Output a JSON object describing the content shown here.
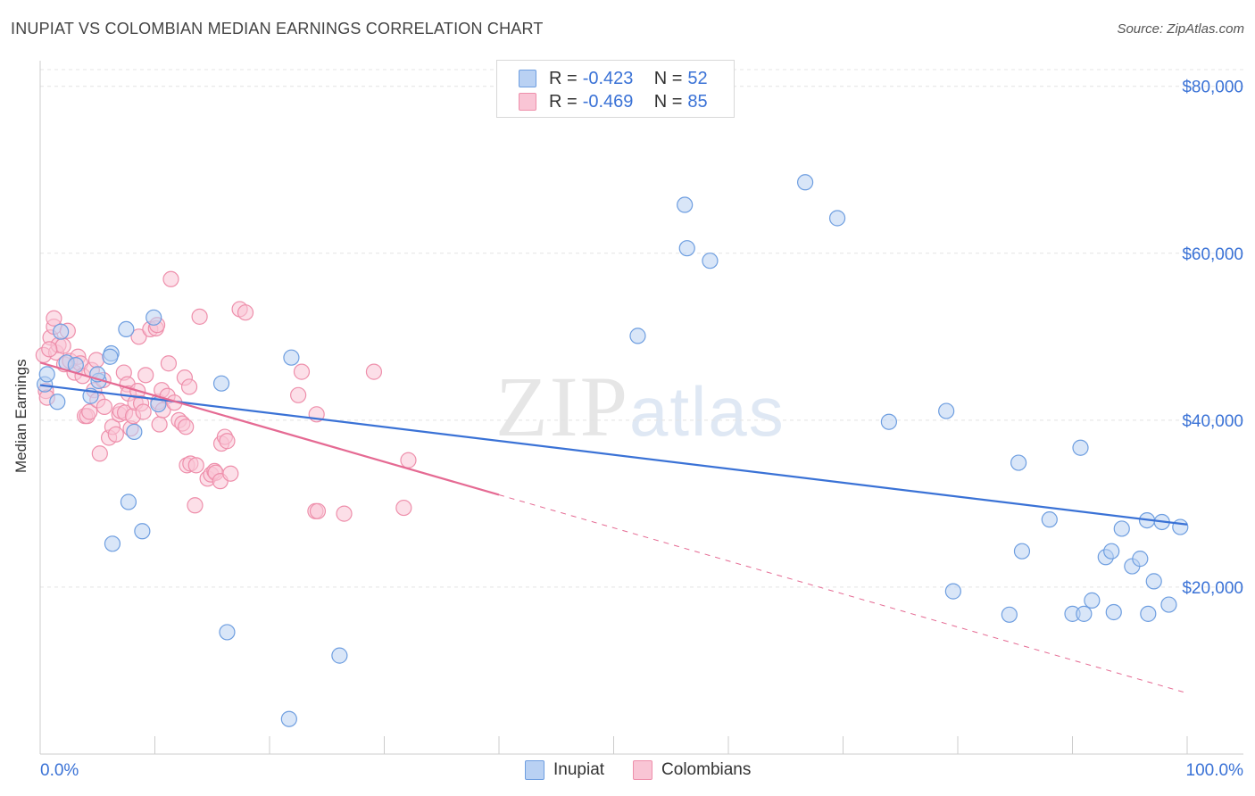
{
  "title": "INUPIAT VS COLOMBIAN MEDIAN EARNINGS CORRELATION CHART",
  "source": "Source: ZipAtlas.com",
  "watermark": {
    "zip": "ZIP",
    "atlas": "atlas"
  },
  "legend_top": [
    {
      "name": "Inupiat",
      "r_label": "R =",
      "r_value": "-0.423",
      "n_label": "N =",
      "n_value": "52",
      "fill": "#b9d1f3",
      "stroke": "#6e9ee0"
    },
    {
      "name": "Colombians",
      "r_label": "R =",
      "r_value": "-0.469",
      "n_label": "N =",
      "n_value": "85",
      "fill": "#f9c5d5",
      "stroke": "#ee8fab"
    }
  ],
  "legend_bottom": [
    "Inupiat",
    "Colombians"
  ],
  "colors": {
    "blue": "#3a72d6",
    "pink": "#e56a93",
    "grid": "#e4e4e4",
    "axis_label": "#3a72d6"
  },
  "chart_data": {
    "type": "scatter",
    "title": "INUPIAT VS COLOMBIAN MEDIAN EARNINGS CORRELATION CHART",
    "xlabel": "",
    "ylabel": "Median Earnings",
    "xlim": [
      0,
      100
    ],
    "ylim": [
      0,
      82000
    ],
    "x_tick_labels": [
      "0.0%",
      "100.0%"
    ],
    "y_ticks": [
      20000,
      40000,
      60000,
      80000
    ],
    "y_tick_labels": [
      "$20,000",
      "$40,000",
      "$60,000",
      "$80,000"
    ],
    "grid": true,
    "series": [
      {
        "name": "Inupiat",
        "color": "#6e9ee0",
        "fill": "#b9d1f3",
        "trend": {
          "x0": 0,
          "y0": 44200,
          "x1": 100,
          "y1": 27500,
          "dashed_from": null
        },
        "points": [
          [
            0.4,
            44300
          ],
          [
            0.6,
            45500
          ],
          [
            1.5,
            42200
          ],
          [
            1.8,
            50600
          ],
          [
            2.3,
            46900
          ],
          [
            3.1,
            46600
          ],
          [
            4.4,
            42900
          ],
          [
            5.1,
            44700
          ],
          [
            5.0,
            45500
          ],
          [
            6.2,
            48000
          ],
          [
            6.1,
            47600
          ],
          [
            6.3,
            25200
          ],
          [
            7.5,
            50900
          ],
          [
            7.7,
            30200
          ],
          [
            8.2,
            38600
          ],
          [
            8.9,
            26700
          ],
          [
            9.9,
            52300
          ],
          [
            10.3,
            41900
          ],
          [
            15.8,
            44400
          ],
          [
            16.3,
            14600
          ],
          [
            21.7,
            4200
          ],
          [
            21.9,
            47500
          ],
          [
            26.1,
            11800
          ],
          [
            52.1,
            50100
          ],
          [
            56.2,
            65800
          ],
          [
            56.4,
            60600
          ],
          [
            58.4,
            59100
          ],
          [
            66.7,
            68500
          ],
          [
            69.5,
            64200
          ],
          [
            74.0,
            39800
          ],
          [
            79.0,
            41100
          ],
          [
            79.6,
            19500
          ],
          [
            84.5,
            16700
          ],
          [
            85.3,
            34900
          ],
          [
            85.6,
            24300
          ],
          [
            88.0,
            28100
          ],
          [
            90.0,
            16800
          ],
          [
            90.7,
            36700
          ],
          [
            91.0,
            16800
          ],
          [
            91.7,
            18400
          ],
          [
            92.9,
            23600
          ],
          [
            93.4,
            24300
          ],
          [
            93.6,
            17000
          ],
          [
            94.3,
            27000
          ],
          [
            95.2,
            22500
          ],
          [
            95.9,
            23400
          ],
          [
            96.5,
            28000
          ],
          [
            96.6,
            16800
          ],
          [
            97.1,
            20700
          ],
          [
            98.4,
            17900
          ],
          [
            99.4,
            27200
          ],
          [
            97.8,
            27800
          ]
        ]
      },
      {
        "name": "Colombians",
        "color": "#ee8fab",
        "fill": "#f9c5d5",
        "trend": {
          "x0": 0,
          "y0": 46900,
          "x1": 100,
          "y1": 7300,
          "dashed_from": 40
        },
        "points": [
          [
            0.3,
            47800
          ],
          [
            0.5,
            43500
          ],
          [
            0.6,
            42700
          ],
          [
            0.9,
            49900
          ],
          [
            1.2,
            51200
          ],
          [
            1.2,
            52200
          ],
          [
            1.4,
            48100
          ],
          [
            1.6,
            49000
          ],
          [
            2.0,
            48900
          ],
          [
            2.1,
            46700
          ],
          [
            2.4,
            50700
          ],
          [
            2.6,
            47100
          ],
          [
            3.0,
            45700
          ],
          [
            3.3,
            47600
          ],
          [
            3.5,
            46800
          ],
          [
            3.7,
            45300
          ],
          [
            3.9,
            40500
          ],
          [
            4.1,
            40500
          ],
          [
            4.3,
            41000
          ],
          [
            4.5,
            46000
          ],
          [
            4.7,
            43600
          ],
          [
            5.0,
            42400
          ],
          [
            5.2,
            36000
          ],
          [
            5.5,
            44800
          ],
          [
            5.6,
            41600
          ],
          [
            6.0,
            37900
          ],
          [
            6.3,
            39200
          ],
          [
            6.6,
            38300
          ],
          [
            6.9,
            40700
          ],
          [
            7.0,
            41100
          ],
          [
            7.3,
            45700
          ],
          [
            7.4,
            40900
          ],
          [
            7.6,
            44300
          ],
          [
            7.7,
            43200
          ],
          [
            7.9,
            39000
          ],
          [
            8.1,
            40500
          ],
          [
            8.3,
            42100
          ],
          [
            8.5,
            43500
          ],
          [
            8.6,
            50000
          ],
          [
            8.8,
            42000
          ],
          [
            9.0,
            41000
          ],
          [
            9.2,
            45400
          ],
          [
            9.6,
            50900
          ],
          [
            10.1,
            51000
          ],
          [
            10.2,
            51400
          ],
          [
            10.3,
            42200
          ],
          [
            10.4,
            39500
          ],
          [
            10.6,
            43600
          ],
          [
            10.7,
            41200
          ],
          [
            11.1,
            42900
          ],
          [
            11.2,
            46800
          ],
          [
            11.4,
            56900
          ],
          [
            11.7,
            42100
          ],
          [
            12.1,
            40000
          ],
          [
            12.4,
            39600
          ],
          [
            12.6,
            45100
          ],
          [
            12.7,
            39200
          ],
          [
            12.8,
            34600
          ],
          [
            13.0,
            44000
          ],
          [
            13.1,
            34800
          ],
          [
            13.5,
            29800
          ],
          [
            13.6,
            34600
          ],
          [
            13.9,
            52400
          ],
          [
            14.6,
            33000
          ],
          [
            14.9,
            33500
          ],
          [
            15.2,
            33900
          ],
          [
            15.3,
            33700
          ],
          [
            15.7,
            32700
          ],
          [
            15.8,
            37200
          ],
          [
            16.1,
            38000
          ],
          [
            16.3,
            37500
          ],
          [
            16.6,
            33600
          ],
          [
            17.4,
            53300
          ],
          [
            17.9,
            52900
          ],
          [
            22.8,
            45800
          ],
          [
            22.5,
            43000
          ],
          [
            24.1,
            40700
          ],
          [
            24.0,
            29100
          ],
          [
            24.2,
            29100
          ],
          [
            26.5,
            28800
          ],
          [
            29.1,
            45800
          ],
          [
            31.7,
            29500
          ],
          [
            32.1,
            35200
          ],
          [
            0.8,
            48500
          ],
          [
            4.9,
            47200
          ]
        ]
      }
    ]
  }
}
